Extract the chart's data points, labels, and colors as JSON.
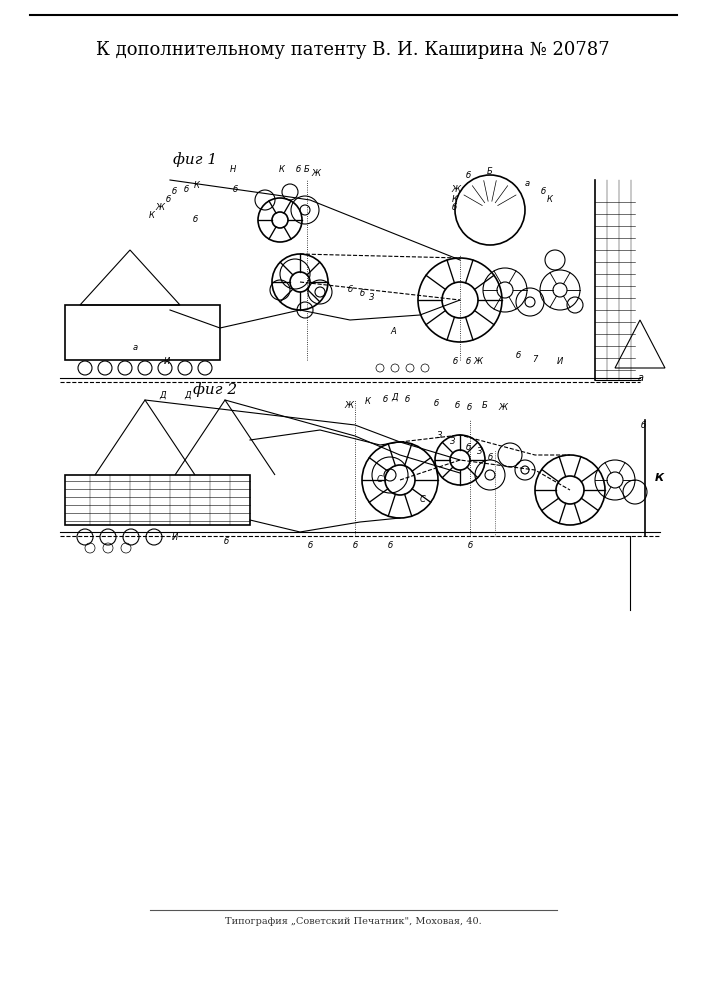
{
  "title_line": "К дополнительному патенту В. И. Каширина № 20787",
  "fig1_label": "фиг 1",
  "fig2_label": "фиг 2",
  "footer": "Типография „Советский Печатник\", Моховая, 40.",
  "bg_color": "#ffffff",
  "line_color": "#000000",
  "border_color": "#888888"
}
